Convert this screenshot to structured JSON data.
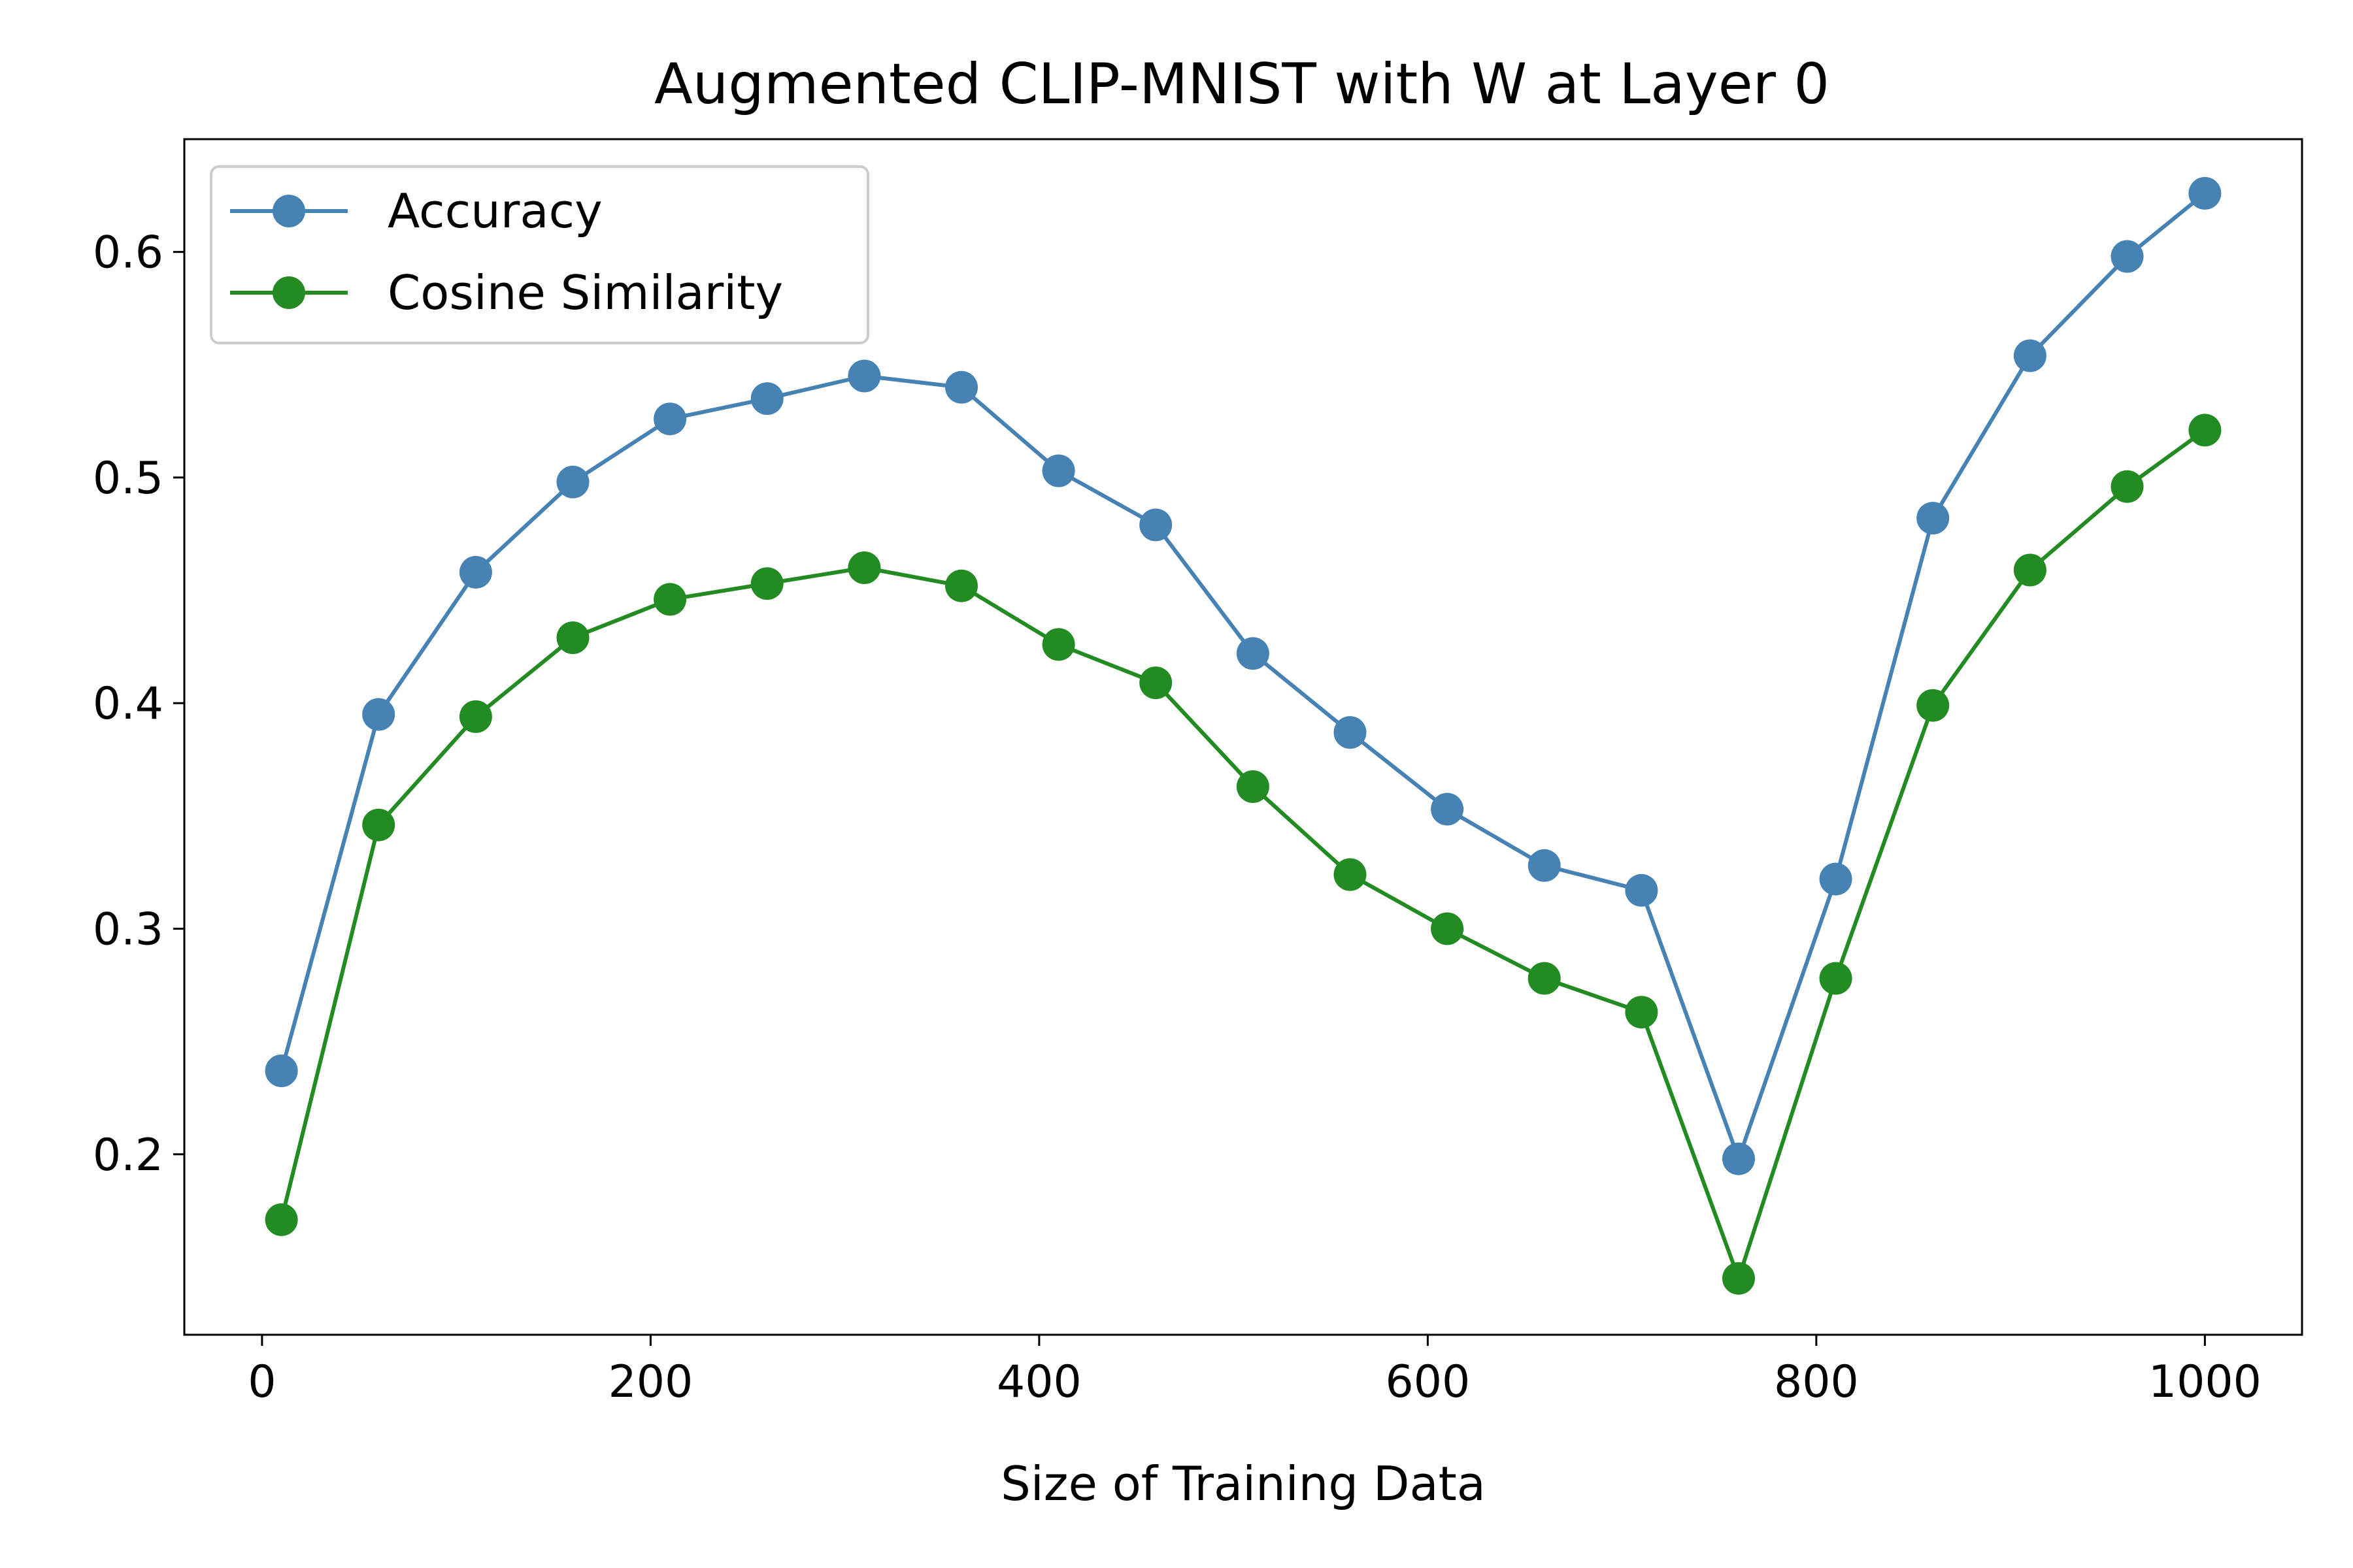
{
  "chart_data": {
    "type": "line",
    "title": "Augmented CLIP-MNIST with W at Layer 0",
    "xlabel": "Size of Training Data",
    "ylabel": "",
    "xlim": [
      -40,
      1050
    ],
    "ylim": [
      0.12,
      0.65
    ],
    "xticks": [
      0,
      200,
      400,
      600,
      800,
      1000
    ],
    "xtick_labels": [
      "0",
      "200",
      "400",
      "600",
      "800",
      "1000"
    ],
    "yticks": [
      0.2,
      0.3,
      0.4,
      0.5,
      0.6
    ],
    "ytick_labels": [
      "0.2",
      "0.3",
      "0.4",
      "0.5",
      "0.6"
    ],
    "grid": false,
    "legend_position": "top-left",
    "x": [
      10,
      60,
      110,
      160,
      210,
      260,
      310,
      360,
      410,
      460,
      510,
      560,
      610,
      660,
      710,
      760,
      810,
      860,
      910,
      960,
      1000
    ],
    "series": [
      {
        "name": "Accuracy",
        "color": "#4682b4",
        "values": [
          0.237,
          0.395,
          0.458,
          0.498,
          0.526,
          0.535,
          0.545,
          0.54,
          0.503,
          0.479,
          0.422,
          0.387,
          0.353,
          0.328,
          0.317,
          0.198,
          0.322,
          0.482,
          0.554,
          0.598,
          0.626
        ]
      },
      {
        "name": "Cosine Similarity",
        "color": "#228b22",
        "values": [
          0.171,
          0.346,
          0.394,
          0.429,
          0.446,
          0.453,
          0.46,
          0.452,
          0.426,
          0.409,
          0.363,
          0.324,
          0.3,
          0.278,
          0.263,
          0.145,
          0.278,
          0.399,
          0.459,
          0.496,
          0.521
        ]
      }
    ]
  }
}
